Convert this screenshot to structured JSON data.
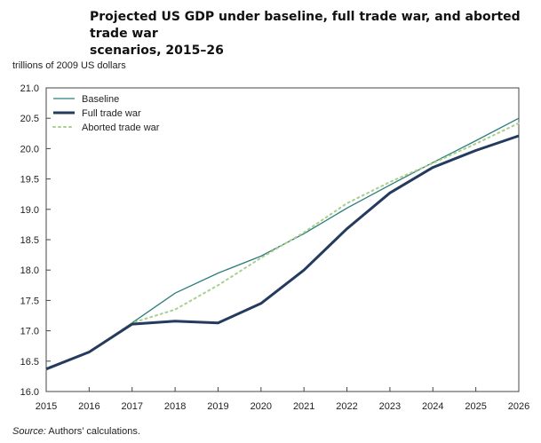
{
  "header": {
    "title_line1": "Projected US GDP under baseline, full trade war, and aborted trade war",
    "title_line2": "scenarios, 2015–26"
  },
  "footer": {
    "source_label": "Source:",
    "source_text": "Authors’ calculations."
  },
  "chart_data": {
    "type": "line",
    "title": "Projected US GDP under baseline, full trade war, and aborted trade war scenarios, 2015–26",
    "ylabel": "trillions of 2009 US dollars",
    "xlabel": "",
    "x": [
      2015,
      2016,
      2017,
      2018,
      2019,
      2020,
      2021,
      2022,
      2023,
      2024,
      2025,
      2026
    ],
    "xticks": [
      "2015",
      "2016",
      "2017",
      "2018",
      "2019",
      "2020",
      "2021",
      "2022",
      "2023",
      "2024",
      "2025",
      "2026"
    ],
    "yticks": [
      "16.0",
      "16.5",
      "17.0",
      "17.5",
      "18.0",
      "18.5",
      "19.0",
      "19.5",
      "20.0",
      "20.5",
      "21.0"
    ],
    "xlim": [
      2015,
      2026
    ],
    "ylim": [
      16.0,
      21.0
    ],
    "grid": false,
    "legend_position": "top-left",
    "series": [
      {
        "name": "Baseline",
        "color": "#2e7d7d",
        "style": "solid-thin",
        "values": [
          16.37,
          16.65,
          17.13,
          17.62,
          17.95,
          18.23,
          18.6,
          19.02,
          19.4,
          19.77,
          20.13,
          20.5
        ]
      },
      {
        "name": "Full trade war",
        "color": "#243a5e",
        "style": "solid-thick",
        "values": [
          16.37,
          16.65,
          17.11,
          17.16,
          17.13,
          17.45,
          18.0,
          18.68,
          19.27,
          19.69,
          19.97,
          20.21
        ]
      },
      {
        "name": "Aborted trade war",
        "color": "#a8cf8c",
        "style": "dotted",
        "values": [
          16.37,
          16.65,
          17.13,
          17.35,
          17.75,
          18.2,
          18.62,
          19.1,
          19.45,
          19.76,
          20.08,
          20.42
        ]
      }
    ]
  }
}
